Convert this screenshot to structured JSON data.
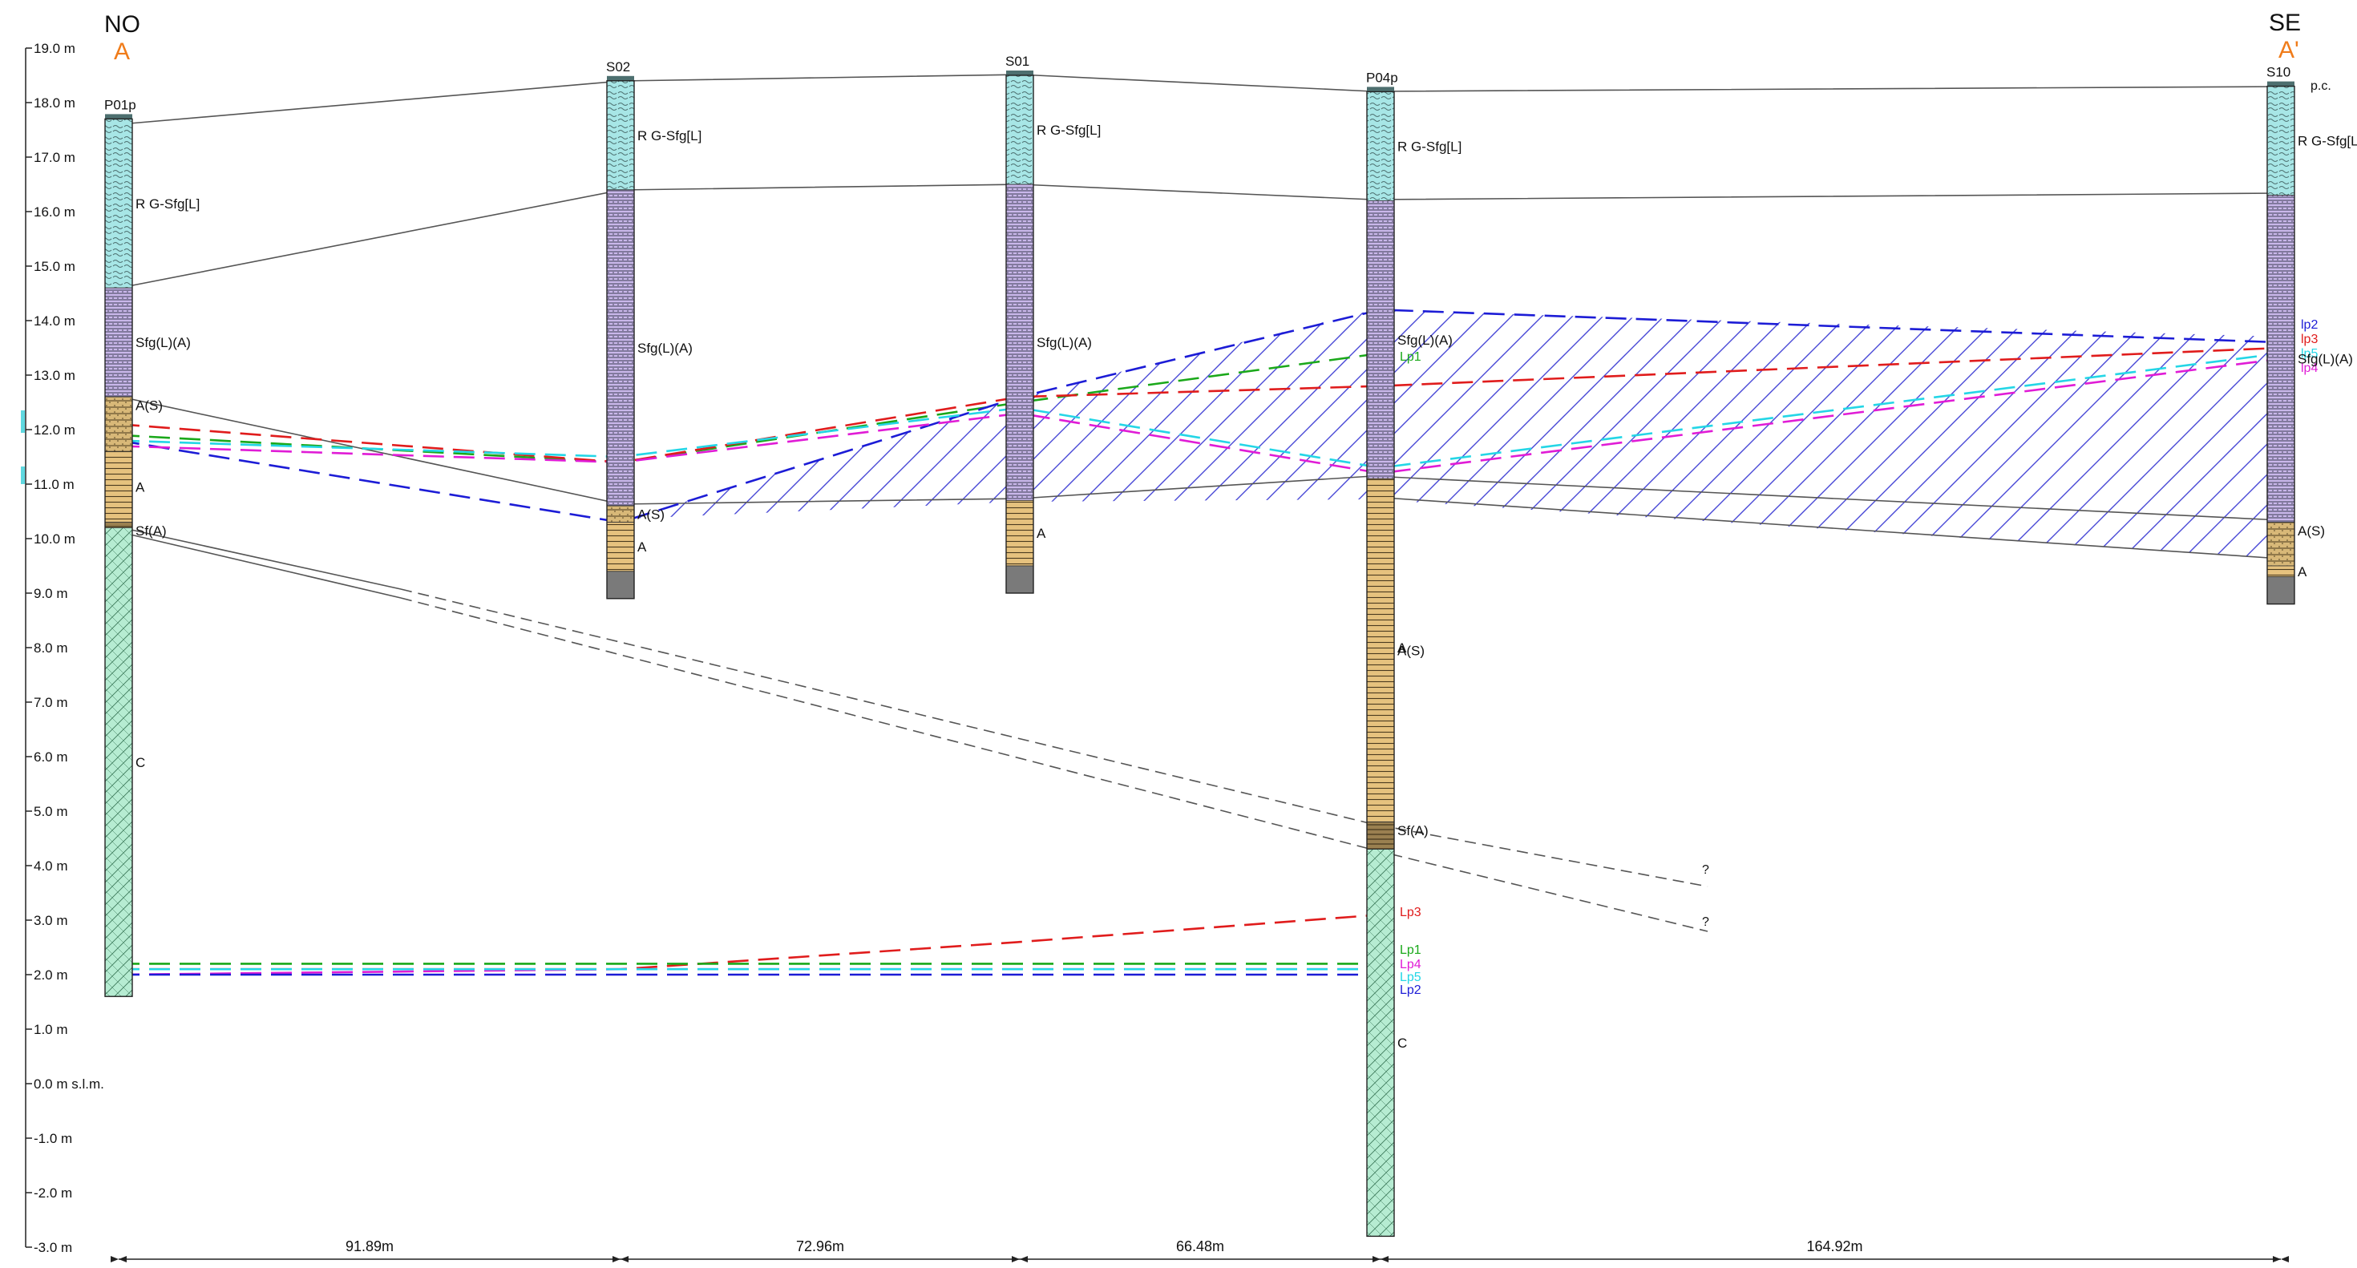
{
  "header": {
    "left_direction": "NO",
    "left_section": "A",
    "right_direction": "SE",
    "right_section": "A'",
    "accent_color": "#f07c1a"
  },
  "axis": {
    "labels": [
      "19.0 m",
      "18.0 m",
      "17.0 m",
      "16.0 m",
      "15.0 m",
      "14.0 m",
      "13.0 m",
      "12.0 m",
      "11.0 m",
      "10.0 m",
      "9.0 m",
      "8.0 m",
      "7.0 m",
      "6.0 m",
      "5.0 m",
      "4.0 m",
      "3.0 m",
      "2.0 m",
      "1.0 m",
      "0.0 m s.l.m.",
      "-1.0 m",
      "-2.0 m",
      "-3.0 m"
    ],
    "min": -3.0,
    "max": 19.0
  },
  "boreholes": [
    {
      "id": "P01p",
      "label": "P01p",
      "top": 17.7,
      "bottom": 1.6,
      "layers": [
        {
          "code": "RG",
          "label": "R G-Sfg[L]",
          "from": 17.7,
          "to": 14.6
        },
        {
          "code": "SfgLA",
          "label": "Sfg(L)(A)",
          "from": 14.6,
          "to": 12.6
        },
        {
          "code": "AS",
          "label": "A(S)",
          "from": 12.6,
          "to": 11.6
        },
        {
          "code": "A",
          "label": "A",
          "from": 11.6,
          "to": 10.3
        },
        {
          "code": "SfA",
          "label": "Sf(A)",
          "from": 10.3,
          "to": 10.2
        },
        {
          "code": "C",
          "label": "C",
          "from": 10.2,
          "to": 1.6
        }
      ]
    },
    {
      "id": "S02",
      "label": "S02",
      "top": 18.4,
      "bottom": 8.9,
      "layers": [
        {
          "code": "RG",
          "label": "R G-Sfg[L]",
          "from": 18.4,
          "to": 16.4
        },
        {
          "code": "SfgLA",
          "label": "Sfg(L)(A)",
          "from": 16.4,
          "to": 10.6
        },
        {
          "code": "AS",
          "label": "A(S)",
          "from": 10.6,
          "to": 10.3
        },
        {
          "code": "A",
          "label": "A",
          "from": 10.3,
          "to": 9.4
        },
        {
          "code": "G",
          "label": "",
          "from": 9.4,
          "to": 8.9
        }
      ]
    },
    {
      "id": "S01",
      "label": "S01",
      "top": 18.5,
      "bottom": 9.0,
      "layers": [
        {
          "code": "RG",
          "label": "R G-Sfg[L]",
          "from": 18.5,
          "to": 16.5
        },
        {
          "code": "SfgLA",
          "label": "Sfg(L)(A)",
          "from": 16.5,
          "to": 10.7
        },
        {
          "code": "A",
          "label": "A",
          "from": 10.7,
          "to": 9.5
        },
        {
          "code": "G",
          "label": "",
          "from": 9.5,
          "to": 9.0
        }
      ]
    },
    {
      "id": "P04p",
      "label": "P04p",
      "top": 18.2,
      "bottom": -2.8,
      "layers": [
        {
          "code": "RG",
          "label": "R G-Sfg[L]",
          "from": 18.2,
          "to": 16.2
        },
        {
          "code": "SfgLA",
          "label": "Sfg(L)(A)",
          "from": 16.2,
          "to": 11.1
        },
        {
          "code": "A",
          "label": "A(S)",
          "from": 11.1,
          "to": 4.8
        },
        {
          "code": "A2",
          "label": "A",
          "from": 8.0,
          "to": 8.0
        },
        {
          "code": "SfA",
          "label": "Sf(A)",
          "from": 4.8,
          "to": 4.3
        },
        {
          "code": "C",
          "label": "C",
          "from": 4.3,
          "to": -2.8
        }
      ]
    },
    {
      "id": "S10",
      "label": "S10",
      "top": 18.3,
      "bottom": 8.8,
      "layers": [
        {
          "code": "RG",
          "label": "R G-Sfg[L]",
          "from": 18.3,
          "to": 16.3
        },
        {
          "code": "SfgLA",
          "label": "Sfg(L)(A)",
          "from": 16.3,
          "to": 10.3
        },
        {
          "code": "AS",
          "label": "A(S)",
          "from": 10.3,
          "to": 9.5
        },
        {
          "code": "A",
          "label": "A",
          "from": 9.5,
          "to": 9.3
        },
        {
          "code": "G",
          "label": "",
          "from": 9.3,
          "to": 8.8
        }
      ]
    }
  ],
  "pc_label": "p.c.",
  "unknown_marks": [
    "?",
    "?"
  ],
  "water_levels_upper": [
    {
      "name": "lp1",
      "color": "#1aa81a",
      "label": "Lp1",
      "points": [
        11.9,
        11.4,
        12.5,
        13.4,
        null
      ]
    },
    {
      "name": "lp2",
      "color": "#1c1cd6",
      "label": "lp2",
      "points": [
        11.8,
        10.3,
        12.6,
        14.2,
        13.6
      ]
    },
    {
      "name": "lp3",
      "color": "#e01c1c",
      "label": "lp3",
      "points": [
        12.1,
        11.4,
        12.6,
        12.8,
        13.5
      ]
    },
    {
      "name": "lp5",
      "color": "#24d6e6",
      "label": "lp5",
      "points": [
        11.8,
        11.5,
        12.4,
        11.3,
        13.4
      ]
    },
    {
      "name": "lp4",
      "color": "#e01cd6",
      "label": "lp4",
      "points": [
        11.7,
        11.4,
        12.3,
        11.2,
        13.3
      ]
    }
  ],
  "water_levels_lower": [
    {
      "name": "lp3",
      "color": "#e01c1c",
      "label": "Lp3",
      "points": [
        2.1,
        2.1,
        2.6,
        3.1
      ]
    },
    {
      "name": "lp1",
      "color": "#1aa81a",
      "label": "Lp1",
      "points": [
        2.2,
        2.2,
        2.2,
        2.2
      ]
    },
    {
      "name": "lp4",
      "color": "#e01cd6",
      "label": "Lp4",
      "points": [
        2.0,
        2.1,
        2.1,
        2.1
      ]
    },
    {
      "name": "lp5",
      "color": "#24d6e6",
      "label": "Lp5",
      "points": [
        2.1,
        2.1,
        2.1,
        2.1
      ]
    },
    {
      "name": "lp2",
      "color": "#1c1cd6",
      "label": "Lp2",
      "points": [
        2.0,
        2.0,
        2.0,
        2.0
      ]
    }
  ],
  "distances": [
    "91.89m",
    "72.96m",
    "66.48m",
    "164.92m"
  ]
}
